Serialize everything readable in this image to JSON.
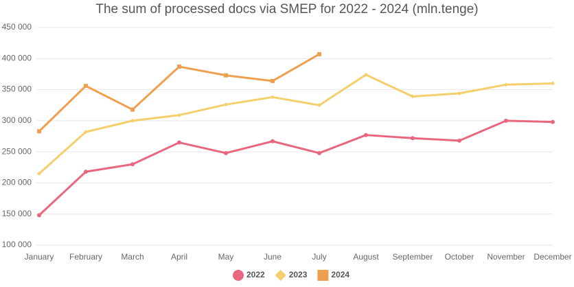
{
  "chart_data": {
    "type": "line",
    "title": "The sum of processed docs via SMEP for 2022 - 2024 (mln.tenge)",
    "categories": [
      "January",
      "February",
      "March",
      "April",
      "May",
      "June",
      "July",
      "August",
      "September",
      "October",
      "November",
      "December"
    ],
    "series": [
      {
        "name": "2022",
        "color": "#e8677f",
        "marker": "circle",
        "values": [
          148000,
          218000,
          230000,
          265000,
          248000,
          267000,
          248000,
          277000,
          272000,
          268000,
          300000,
          298000
        ]
      },
      {
        "name": "2023",
        "color": "#f5cf6b",
        "marker": "diamond",
        "values": [
          215000,
          282000,
          300000,
          309000,
          326000,
          338000,
          325000,
          374000,
          339000,
          344000,
          358000,
          360000
        ]
      },
      {
        "name": "2024",
        "color": "#eea050",
        "marker": "square",
        "values": [
          283000,
          356000,
          318000,
          387000,
          373000,
          364000,
          407000,
          null,
          null,
          null,
          null,
          null
        ]
      }
    ],
    "ylim": [
      100000,
      450000
    ],
    "yticks": [
      {
        "value": 100000,
        "label": "100 000"
      },
      {
        "value": 150000,
        "label": "150 000"
      },
      {
        "value": 200000,
        "label": "200 000"
      },
      {
        "value": 250000,
        "label": "250 000"
      },
      {
        "value": 300000,
        "label": "300 000"
      },
      {
        "value": 350000,
        "label": "350 000"
      },
      {
        "value": 400000,
        "label": "400 000"
      },
      {
        "value": 450000,
        "label": "450 000"
      }
    ],
    "grid": true,
    "legend": "bottom"
  }
}
